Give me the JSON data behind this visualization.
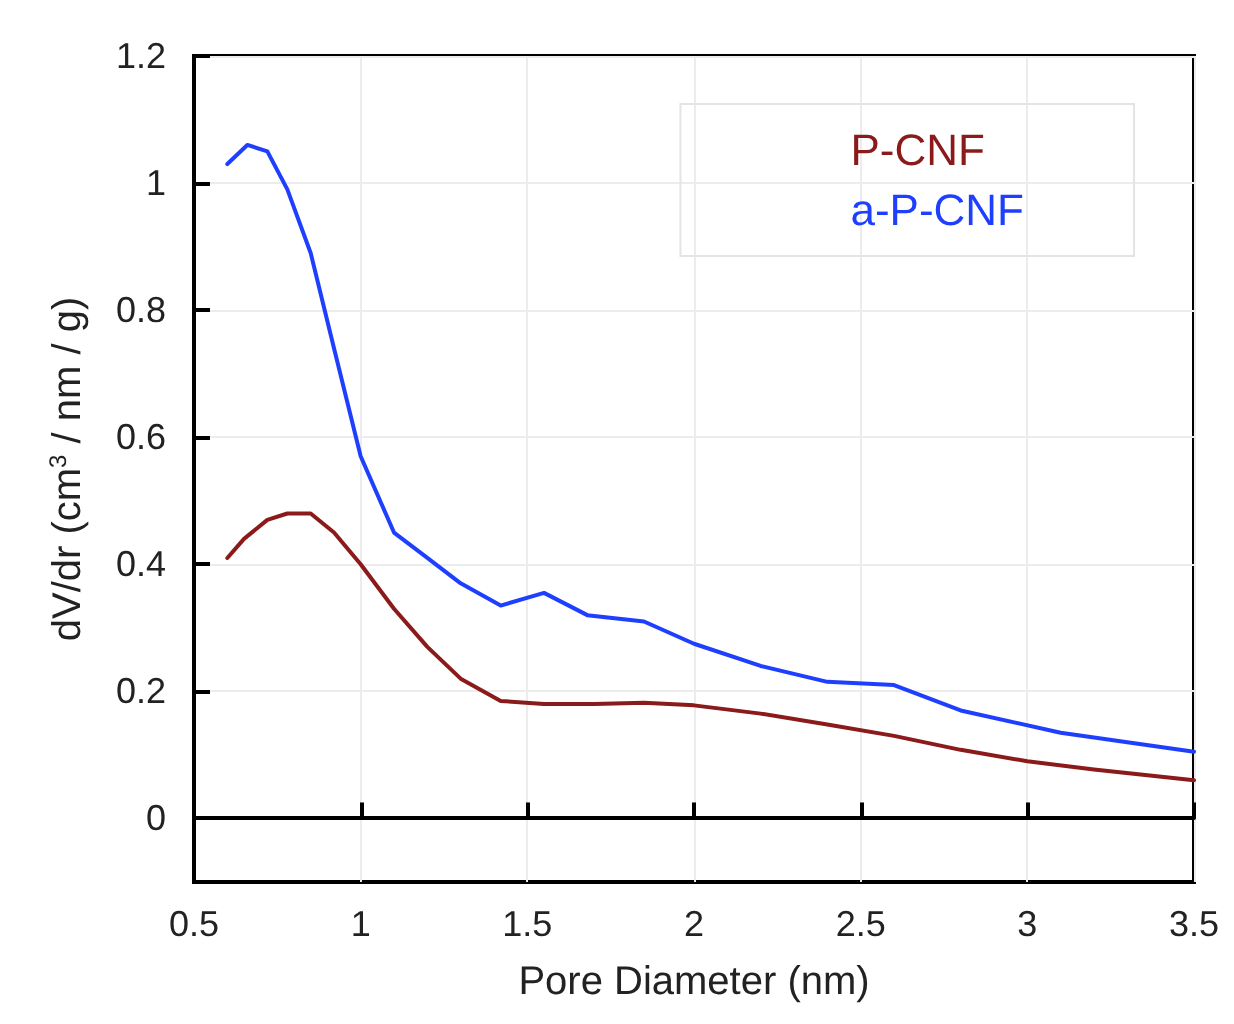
{
  "chart_data": {
    "type": "line",
    "xlabel": "Pore Diameter (nm)",
    "ylabel": "dV/dr (cm$^{3}$ / nm / g)",
    "series": [
      {
        "name": "P-CNF",
        "color": "#8b1a1a",
        "x": [
          0.6,
          0.65,
          0.72,
          0.78,
          0.85,
          0.92,
          1.0,
          1.1,
          1.2,
          1.3,
          1.42,
          1.55,
          1.7,
          1.85,
          2.0,
          2.2,
          2.4,
          2.6,
          2.8,
          3.0,
          3.2,
          3.5
        ],
        "values": [
          0.41,
          0.44,
          0.47,
          0.48,
          0.48,
          0.45,
          0.4,
          0.33,
          0.27,
          0.22,
          0.185,
          0.18,
          0.18,
          0.182,
          0.178,
          0.165,
          0.148,
          0.13,
          0.108,
          0.09,
          0.077,
          0.06
        ]
      },
      {
        "name": "a-P-CNF",
        "color": "#1f3fff",
        "x": [
          0.6,
          0.66,
          0.72,
          0.78,
          0.85,
          0.92,
          1.0,
          1.1,
          1.2,
          1.3,
          1.42,
          1.55,
          1.68,
          1.85,
          2.0,
          2.2,
          2.4,
          2.6,
          2.8,
          3.1,
          3.5
        ],
        "values": [
          1.03,
          1.06,
          1.05,
          0.99,
          0.89,
          0.74,
          0.57,
          0.45,
          0.41,
          0.37,
          0.335,
          0.355,
          0.32,
          0.31,
          0.275,
          0.24,
          0.215,
          0.21,
          0.17,
          0.135,
          0.105
        ]
      }
    ],
    "xlim": [
      0.5,
      3.5
    ],
    "xticks": [
      0.5,
      1,
      1.5,
      2,
      2.5,
      3,
      3.5
    ],
    "ylim": [
      -0.1,
      1.2
    ],
    "yticks": [
      0,
      0.2,
      0.4,
      0.6,
      0.8,
      1,
      1.2
    ],
    "grid": true,
    "legend": "top right",
    "marker": "none",
    "line_style": "solid"
  }
}
